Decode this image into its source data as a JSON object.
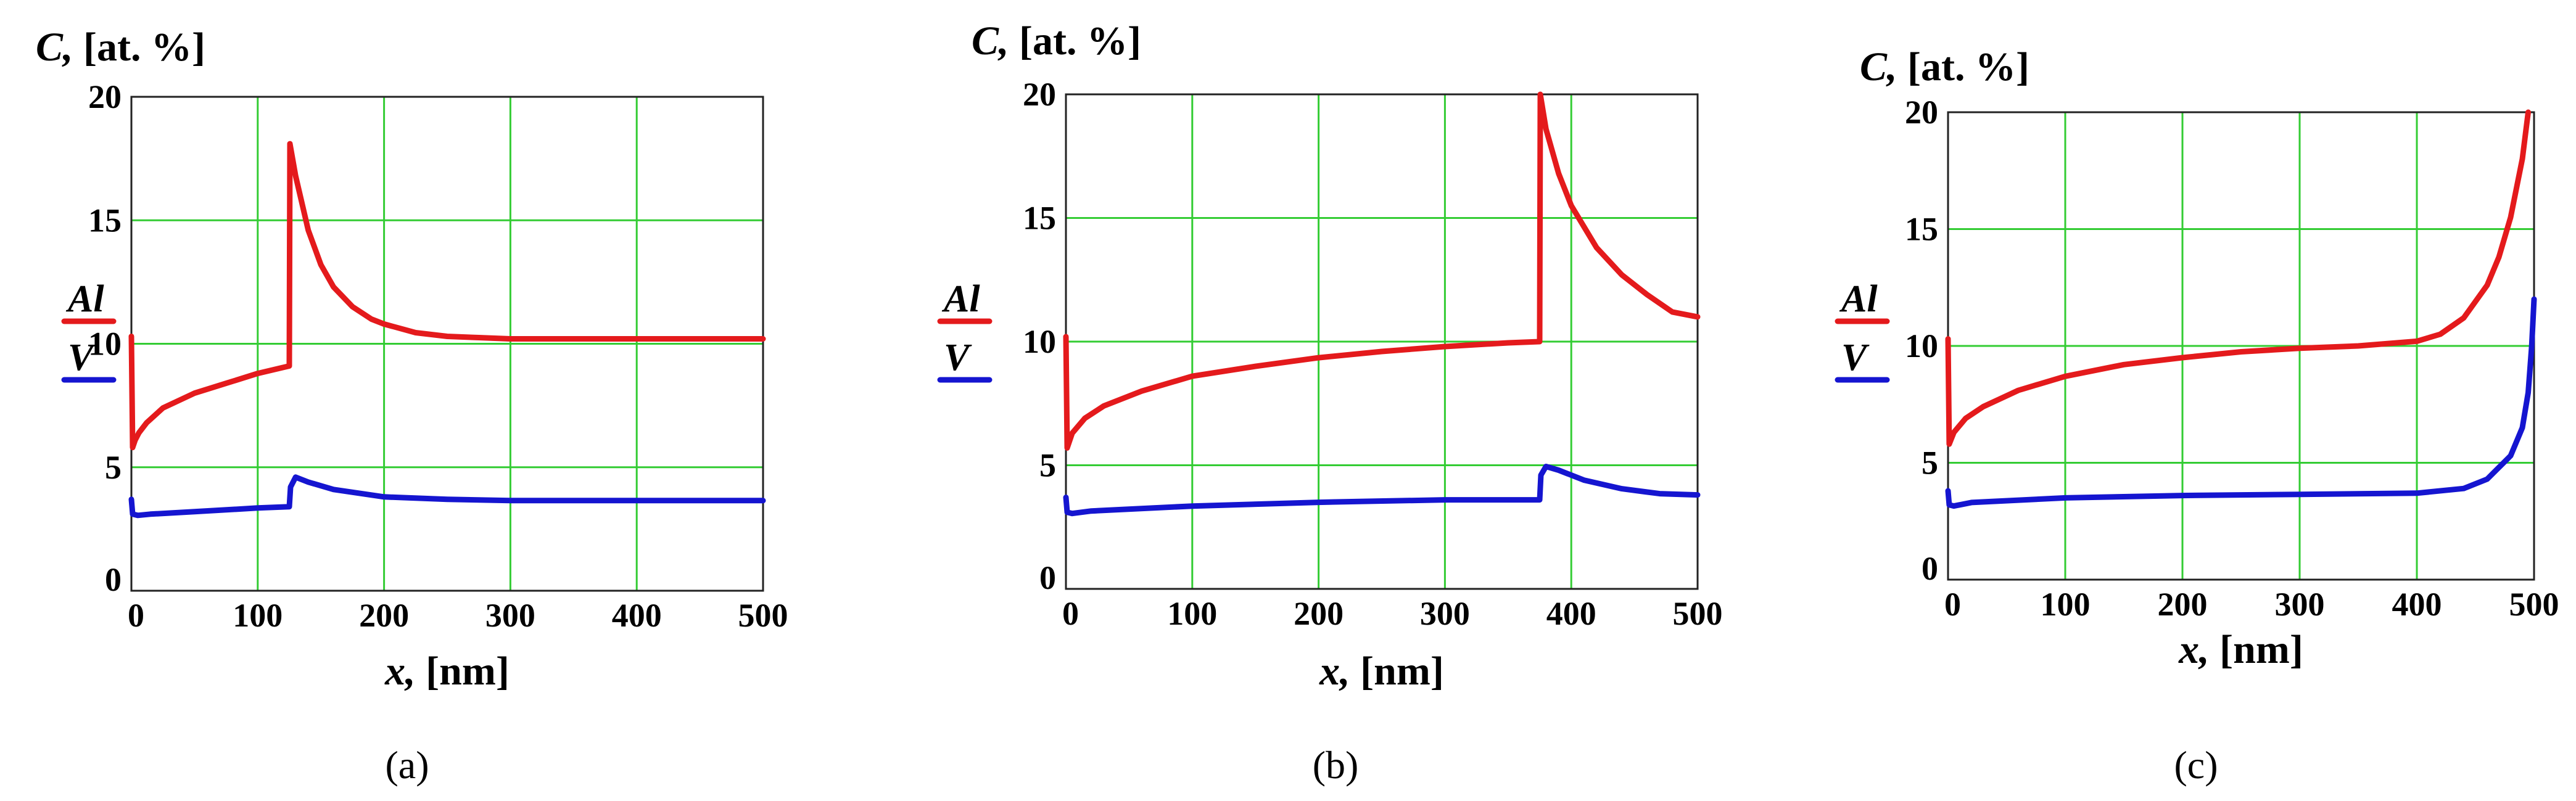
{
  "chart_data": [
    {
      "id": "a",
      "type": "line",
      "panel_label": "(a)",
      "ylabel_var": "C,",
      "ylabel_unit": " [at. %]",
      "xlabel_var": "x,",
      "xlabel_unit": " [nm]",
      "xlim": [
        0,
        500
      ],
      "ylim": [
        0,
        20
      ],
      "xticks": [
        0,
        100,
        200,
        300,
        400,
        500
      ],
      "yticks": [
        0,
        5,
        10,
        15,
        20
      ],
      "grid": true,
      "legend": [
        "Al",
        "V"
      ],
      "series": [
        {
          "name": "Al",
          "color": "#e41a1c",
          "x": [
            0,
            1,
            3,
            6,
            12,
            25,
            50,
            75,
            100,
            125,
            125.5,
            130,
            140,
            150,
            160,
            175,
            190,
            200,
            225,
            250,
            275,
            300,
            400,
            500
          ],
          "y": [
            10.3,
            5.8,
            6.1,
            6.4,
            6.8,
            7.4,
            8.0,
            8.4,
            8.8,
            9.1,
            18.1,
            16.8,
            14.6,
            13.2,
            12.3,
            11.5,
            11.0,
            10.8,
            10.45,
            10.3,
            10.25,
            10.2,
            10.2,
            10.2
          ]
        },
        {
          "name": "V",
          "color": "#1515d0",
          "x": [
            0,
            1,
            5,
            15,
            50,
            100,
            125,
            126,
            130,
            140,
            160,
            200,
            250,
            300,
            400,
            500
          ],
          "y": [
            3.7,
            3.1,
            3.05,
            3.1,
            3.2,
            3.35,
            3.4,
            4.2,
            4.6,
            4.4,
            4.1,
            3.8,
            3.7,
            3.65,
            3.65,
            3.65
          ]
        }
      ]
    },
    {
      "id": "b",
      "type": "line",
      "panel_label": "(b)",
      "ylabel_var": "C,",
      "ylabel_unit": " [at. %]",
      "xlabel_var": "x,",
      "xlabel_unit": " [nm]",
      "xlim": [
        0,
        500
      ],
      "ylim": [
        0,
        20
      ],
      "xticks": [
        0,
        100,
        200,
        300,
        400,
        500
      ],
      "yticks": [
        0,
        5,
        10,
        15,
        20
      ],
      "grid": true,
      "legend": [
        "Al",
        "V"
      ],
      "series": [
        {
          "name": "Al",
          "color": "#e41a1c",
          "x": [
            0,
            1,
            5,
            15,
            30,
            60,
            100,
            150,
            200,
            250,
            300,
            350,
            375,
            375.5,
            380,
            390,
            400,
            420,
            440,
            460,
            480,
            500
          ],
          "y": [
            10.2,
            5.7,
            6.3,
            6.9,
            7.4,
            8.0,
            8.6,
            9.0,
            9.35,
            9.6,
            9.8,
            9.95,
            10.0,
            20.0,
            18.6,
            16.8,
            15.5,
            13.8,
            12.7,
            11.9,
            11.2,
            11.0
          ]
        },
        {
          "name": "V",
          "color": "#1515d0",
          "x": [
            0,
            1,
            5,
            20,
            100,
            200,
            300,
            375,
            376,
            380,
            390,
            410,
            440,
            470,
            500
          ],
          "y": [
            3.7,
            3.1,
            3.05,
            3.15,
            3.35,
            3.5,
            3.6,
            3.6,
            4.6,
            4.95,
            4.8,
            4.4,
            4.05,
            3.85,
            3.8
          ]
        }
      ]
    },
    {
      "id": "c",
      "type": "line",
      "panel_label": "(c)",
      "ylabel_var": "C,",
      "ylabel_unit": " [at. %]",
      "xlabel_var": "x,",
      "xlabel_unit": " [nm]",
      "xlim": [
        0,
        500
      ],
      "ylim": [
        0,
        20
      ],
      "xticks": [
        0,
        100,
        200,
        300,
        400,
        500
      ],
      "yticks": [
        0,
        5,
        10,
        15,
        20
      ],
      "grid": true,
      "legend": [
        "Al",
        "V"
      ],
      "series": [
        {
          "name": "Al",
          "color": "#e41a1c",
          "x": [
            0,
            1,
            5,
            15,
            30,
            60,
            100,
            150,
            200,
            250,
            300,
            350,
            400,
            420,
            440,
            460,
            470,
            480,
            490,
            495
          ],
          "y": [
            10.3,
            5.8,
            6.3,
            6.9,
            7.4,
            8.1,
            8.7,
            9.2,
            9.5,
            9.75,
            9.9,
            10.0,
            10.2,
            10.5,
            11.2,
            12.6,
            13.8,
            15.5,
            18.0,
            20.0
          ]
        },
        {
          "name": "V",
          "color": "#1515d0",
          "x": [
            0,
            1,
            5,
            20,
            100,
            200,
            300,
            400,
            440,
            460,
            480,
            490,
            495,
            498,
            500
          ],
          "y": [
            3.8,
            3.2,
            3.15,
            3.3,
            3.5,
            3.6,
            3.65,
            3.7,
            3.9,
            4.3,
            5.3,
            6.5,
            8.0,
            10.0,
            12.0
          ]
        }
      ]
    }
  ]
}
